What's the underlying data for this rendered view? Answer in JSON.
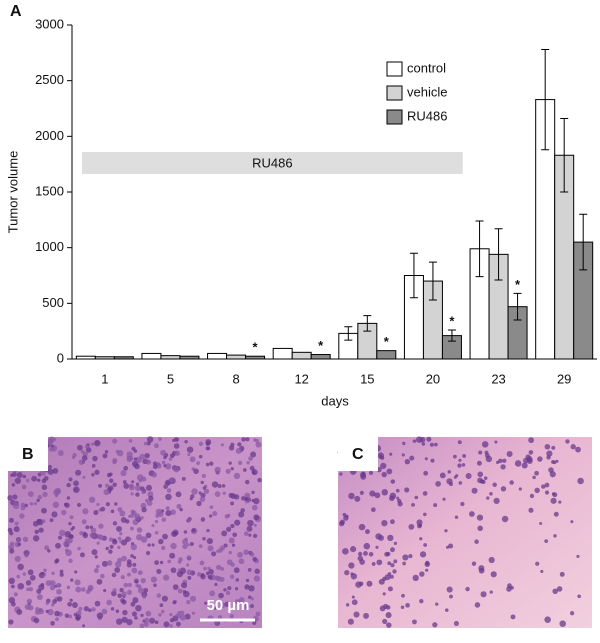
{
  "chart_data": {
    "type": "bar",
    "ylabel": "Tumor volume",
    "xlabel": "days",
    "categories": [
      "1",
      "5",
      "8",
      "12",
      "15",
      "20",
      "23",
      "29"
    ],
    "series": [
      {
        "name": "control",
        "color": "#ffffff",
        "values": [
          25,
          50,
          50,
          95,
          230,
          750,
          990,
          2330
        ],
        "errors": [
          null,
          null,
          null,
          null,
          60,
          200,
          250,
          450
        ]
      },
      {
        "name": "vehicle",
        "color": "#d3d3d3",
        "values": [
          20,
          30,
          35,
          60,
          320,
          700,
          940,
          1830
        ],
        "errors": [
          null,
          null,
          null,
          null,
          70,
          170,
          230,
          330
        ]
      },
      {
        "name": "RU486",
        "color": "#8a8a8a",
        "values": [
          20,
          25,
          25,
          40,
          75,
          210,
          470,
          1050
        ],
        "errors": [
          null,
          null,
          null,
          null,
          null,
          50,
          120,
          250
        ]
      }
    ],
    "significance": [
      {
        "category": "8",
        "text": "*"
      },
      {
        "category": "12",
        "text": "*"
      },
      {
        "category": "15",
        "text": "*"
      },
      {
        "category": "20",
        "text": "*"
      },
      {
        "category": "23",
        "text": "*"
      }
    ],
    "treatment_band": {
      "label": "RU486",
      "from": "1",
      "to": "20"
    },
    "ylim": [
      0,
      3000
    ],
    "yticks": [
      0,
      500,
      1000,
      1500,
      2000,
      2500,
      3000
    ],
    "legend": "top-right"
  },
  "panel_labels": [
    "A",
    "B",
    "C"
  ],
  "scale_bar": "50 µm"
}
